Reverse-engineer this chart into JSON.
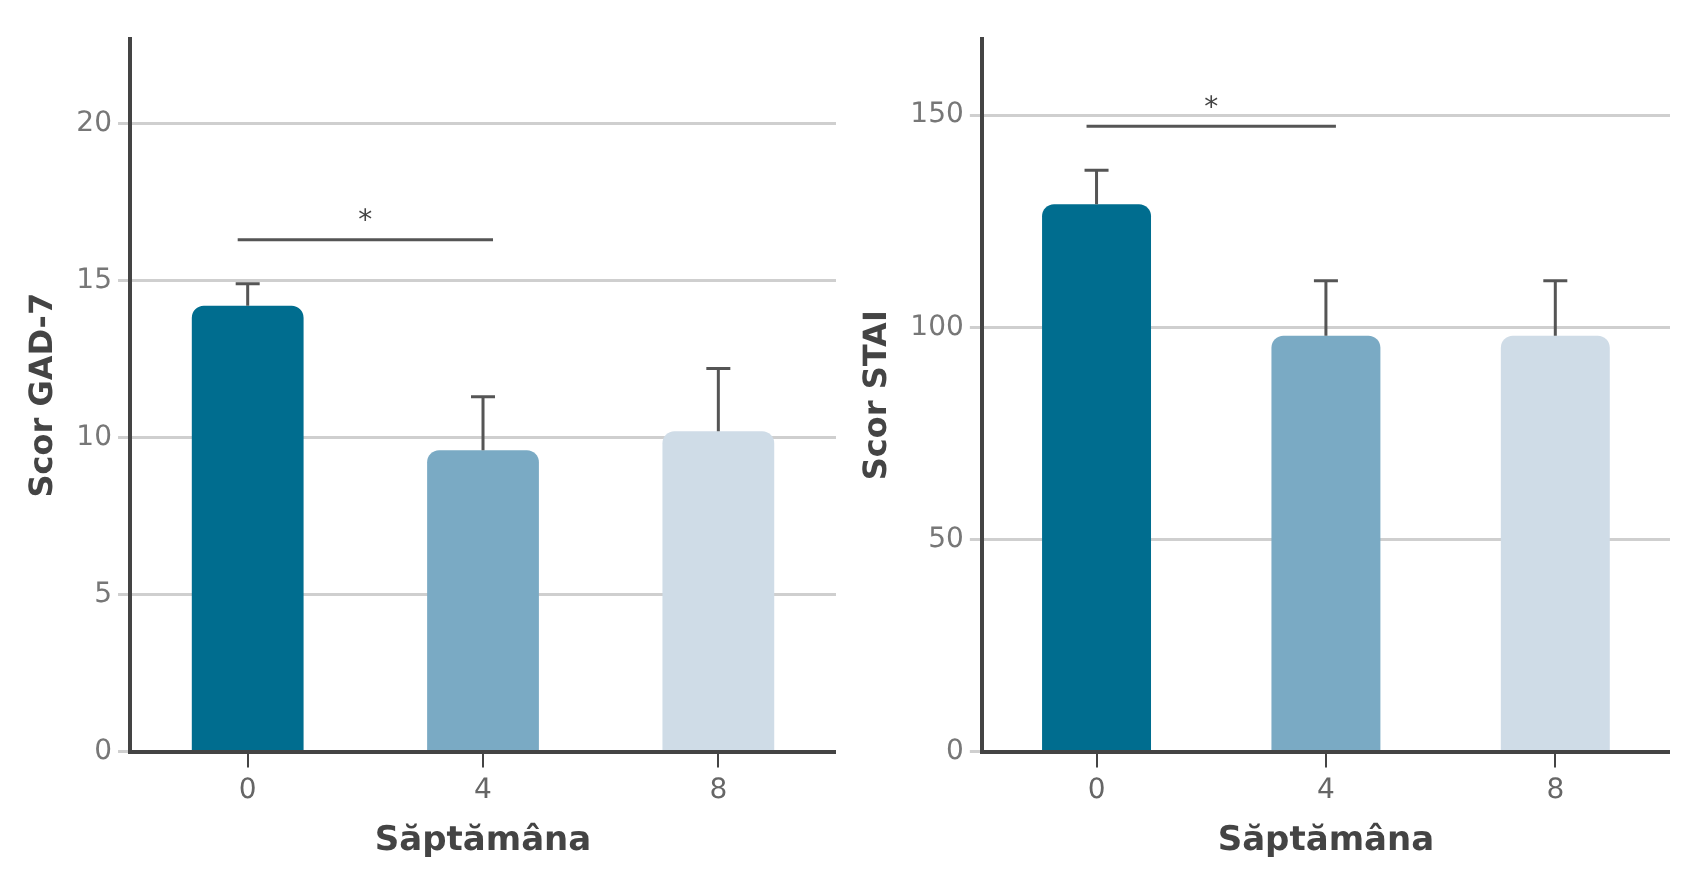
{
  "chart_data": [
    {
      "type": "bar",
      "categories": [
        "0",
        "4",
        "8"
      ],
      "values": [
        14.2,
        9.6,
        10.2
      ],
      "colors": [
        "#006d8f",
        "#7aaac4",
        "#cfdce7"
      ],
      "errors": [
        [
          14.2,
          14.9
        ],
        [
          9.6,
          11.3
        ],
        [
          10.2,
          12.2
        ]
      ],
      "xlabel": "Săptămâna",
      "ylabel": "Scor GAD-7",
      "ylim": [
        0,
        22.7
      ],
      "yticks": [
        0,
        5,
        10,
        15,
        20
      ],
      "grid": "y",
      "annotations": [
        "*"
      ]
    },
    {
      "type": "bar",
      "categories": [
        "0",
        "4",
        "8"
      ],
      "values": [
        129,
        98,
        98
      ],
      "colors": [
        "#006d8f",
        "#7aaac4",
        "#cfdce7"
      ],
      "errors": [
        [
          129,
          137
        ],
        [
          98,
          111
        ],
        [
          98,
          111
        ]
      ],
      "xlabel": "Săptămâna",
      "ylabel": "Scor STAI",
      "ylim": [
        0,
        168
      ],
      "yticks": [
        0,
        50,
        100,
        150
      ],
      "grid": "y",
      "annotations": [
        "*"
      ]
    }
  ]
}
